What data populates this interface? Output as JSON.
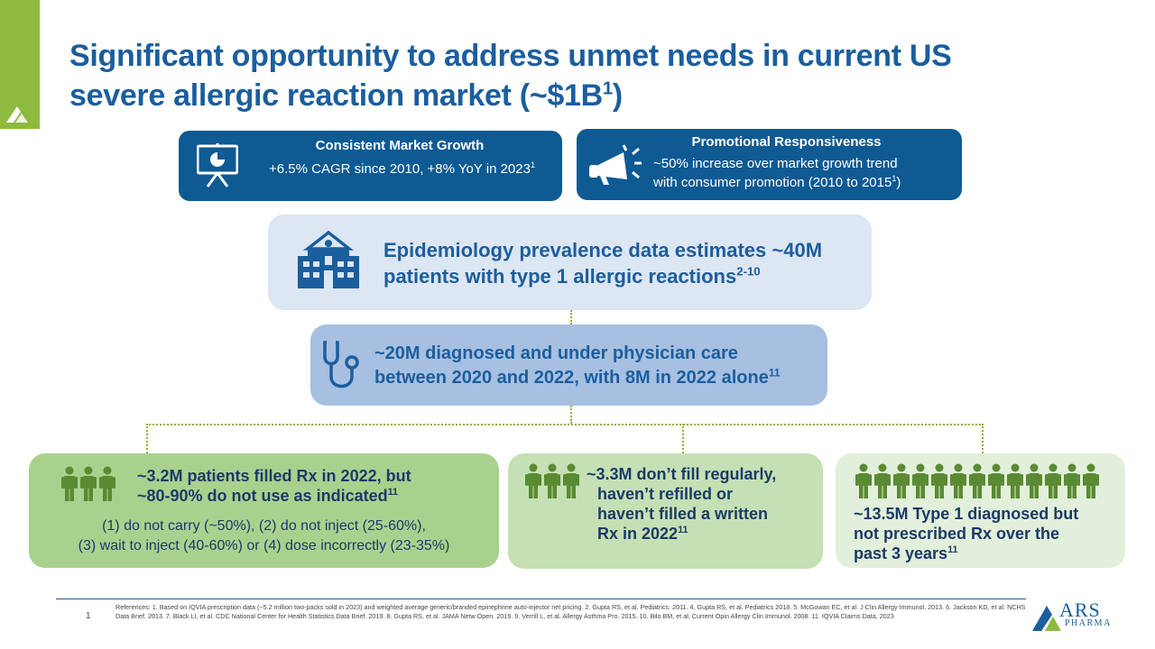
{
  "title": {
    "line1": "Significant opportunity to address unmet needs in current US",
    "line2_prefix": "severe allergic reaction market (~$1B",
    "line2_sup": "1",
    "line2_suffix": ")"
  },
  "market_growth": {
    "heading": "Consistent Market Growth",
    "text": "+6.5% CAGR since 2010, +8% YoY in 2023",
    "sup": "1",
    "icon": "presentation-chart-icon"
  },
  "promo": {
    "heading": "Promotional Responsiveness",
    "line1": "~50% increase over market growth trend",
    "line2_prefix": "with consumer promotion (2010 to 2015",
    "line2_sup": "1",
    "line2_suffix": ")",
    "icon": "megaphone-icon"
  },
  "epidemiology": {
    "line1": "Epidemiology prevalence data estimates ~40M",
    "line2": "patients with type 1 allergic reactions",
    "sup": "2-10",
    "icon": "hospital-icon"
  },
  "diagnosed": {
    "line1": "~20M diagnosed and under physician care",
    "line2": "between 2020 and 2022, with 8M in 2022 alone",
    "sup": "11",
    "icon": "stethoscope-icon"
  },
  "filled": {
    "line1": "~3.2M patients filled Rx in 2022, but",
    "line2": "~80-90% do not use as indicated",
    "sup": "11",
    "sub1": "(1) do not carry (~50%), (2) do not inject (25-60%),",
    "sub2": "(3) wait to inject (40-60%) or (4) dose incorrectly (23-35%)",
    "icon": "people-icon"
  },
  "not_filled": {
    "line1": "~3.3M don’t fill regularly,",
    "line2": "haven’t refilled or",
    "line3": "haven’t filled a written",
    "line4": "Rx in 2022",
    "sup": "11",
    "icon": "people-icon"
  },
  "not_prescribed": {
    "line1": "~13.5M Type 1 diagnosed but",
    "line2": "not prescribed Rx over the",
    "line3": "past 3 years",
    "sup": "11",
    "icon": "people-icon"
  },
  "footer": {
    "page": "1",
    "references": "References: 1. Based on IQVIA prescription data (~5.2 million two-packs sold in 2023) and weighted average generic/branded epinephrine auto-injector net pricing. 2. Gupta RS, et al. Pediatrics. 2011. 4. Gupta RS, et al. Pediatrics 2018. 5. McGowan EC, et al. J Clin Allergy Immunol. 2013. 6. Jackson KD, et al. NCHS Data Brief. 2013. 7. Black LI, et al. CDC National Center for Health Statistics Data Brief. 2019. 8. Gupta RS, et al. JAMA Netw Open. 2019. 9. Verrill L, et al. Allergy Asthma Pro. 2015. 10. Bilo BM, et al. Current Opin Allergy Clin Immunol. 2008. 11. IQVIA Claims Data, 2023",
    "logo_main": "ARS",
    "logo_sub": "PHARMA"
  },
  "colors": {
    "brand_blue": "#1b5e9e",
    "pill_blue": "#0e5a93",
    "green_accent": "#8dbb3f",
    "people_green": "#5a8a32"
  }
}
